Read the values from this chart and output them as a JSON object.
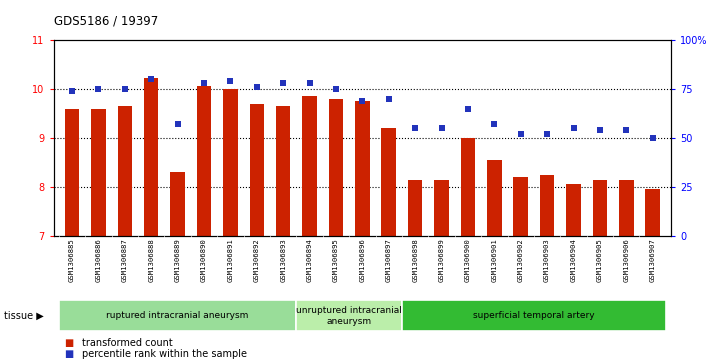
{
  "title": "GDS5186 / 19397",
  "samples": [
    "GSM1306885",
    "GSM1306886",
    "GSM1306887",
    "GSM1306888",
    "GSM1306889",
    "GSM1306890",
    "GSM1306891",
    "GSM1306892",
    "GSM1306893",
    "GSM1306894",
    "GSM1306895",
    "GSM1306896",
    "GSM1306897",
    "GSM1306898",
    "GSM1306899",
    "GSM1306900",
    "GSM1306901",
    "GSM1306902",
    "GSM1306903",
    "GSM1306904",
    "GSM1306905",
    "GSM1306906",
    "GSM1306907"
  ],
  "bar_values": [
    9.6,
    9.6,
    9.65,
    10.23,
    8.3,
    10.05,
    10.0,
    9.7,
    9.65,
    9.85,
    9.8,
    9.75,
    9.2,
    8.15,
    8.15,
    9.0,
    8.55,
    8.2,
    8.25,
    8.05,
    8.15,
    8.15,
    7.95
  ],
  "percentile_values": [
    74,
    75,
    75,
    80,
    57,
    78,
    79,
    76,
    78,
    78,
    75,
    69,
    70,
    55,
    55,
    65,
    57,
    52,
    52,
    55,
    54,
    54,
    50
  ],
  "ylim_left": [
    7,
    11
  ],
  "ylim_right": [
    0,
    100
  ],
  "yticks_left": [
    7,
    8,
    9,
    10,
    11
  ],
  "yticks_right": [
    0,
    25,
    50,
    75,
    100
  ],
  "ytick_labels_right": [
    "0",
    "25",
    "50",
    "75",
    "100%"
  ],
  "bar_color": "#cc2200",
  "dot_color": "#2233bb",
  "bg_color": "#e8e8e8",
  "plot_bg": "#ffffff",
  "tissue_groups": [
    {
      "label": "ruptured intracranial aneurysm",
      "start": 0,
      "end": 9,
      "color": "#99dd99"
    },
    {
      "label": "unruptured intracranial\naneurysm",
      "start": 9,
      "end": 13,
      "color": "#bbeeaa"
    },
    {
      "label": "superficial temporal artery",
      "start": 13,
      "end": 23,
      "color": "#33bb33"
    }
  ],
  "legend_bar_label": "transformed count",
  "legend_dot_label": "percentile rank within the sample",
  "tissue_arrow": "tissue ▶"
}
